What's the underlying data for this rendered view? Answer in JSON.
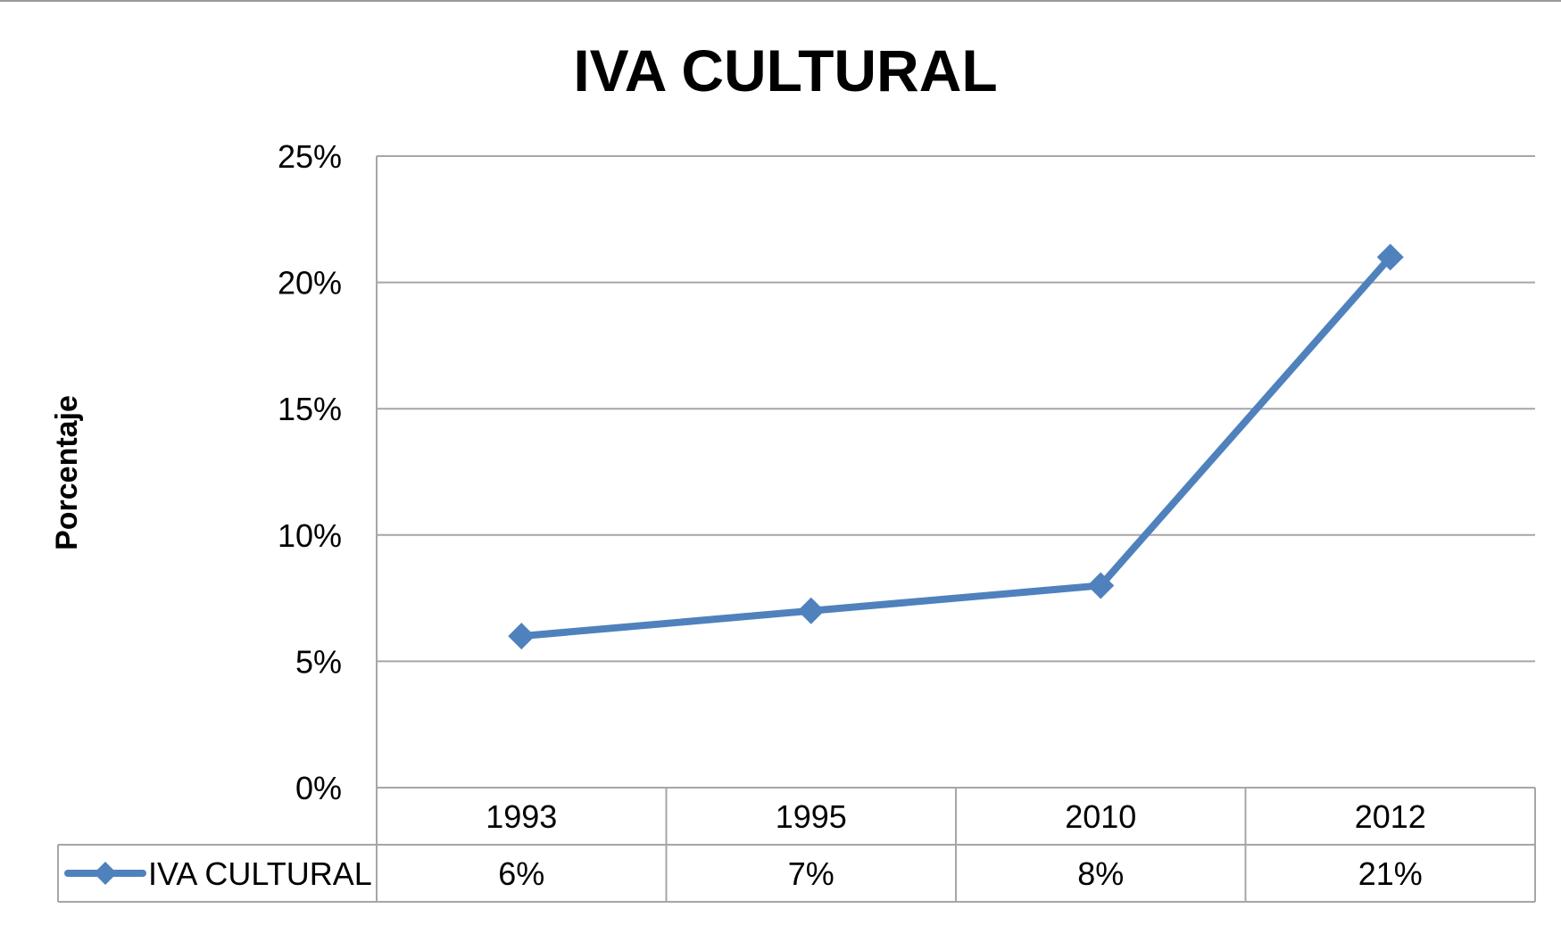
{
  "chart_data": {
    "type": "line",
    "title": "IVA CULTURAL",
    "ylabel": "Porcentaje",
    "xlabel": "",
    "categories": [
      "1993",
      "1995",
      "2010",
      "2012"
    ],
    "series": [
      {
        "name": "IVA CULTURAL",
        "values": [
          6,
          7,
          8,
          21
        ],
        "value_labels": [
          "6%",
          "7%",
          "8%",
          "21%"
        ],
        "color": "#4f81bd",
        "marker": "diamond"
      }
    ],
    "ylim": [
      0,
      25
    ],
    "yticks": [
      {
        "value": 0,
        "label": "0%"
      },
      {
        "value": 5,
        "label": "5%"
      },
      {
        "value": 10,
        "label": "10%"
      },
      {
        "value": 15,
        "label": "15%"
      },
      {
        "value": 20,
        "label": "20%"
      },
      {
        "value": 25,
        "label": "25%"
      }
    ],
    "grid": true,
    "data_table": true
  }
}
